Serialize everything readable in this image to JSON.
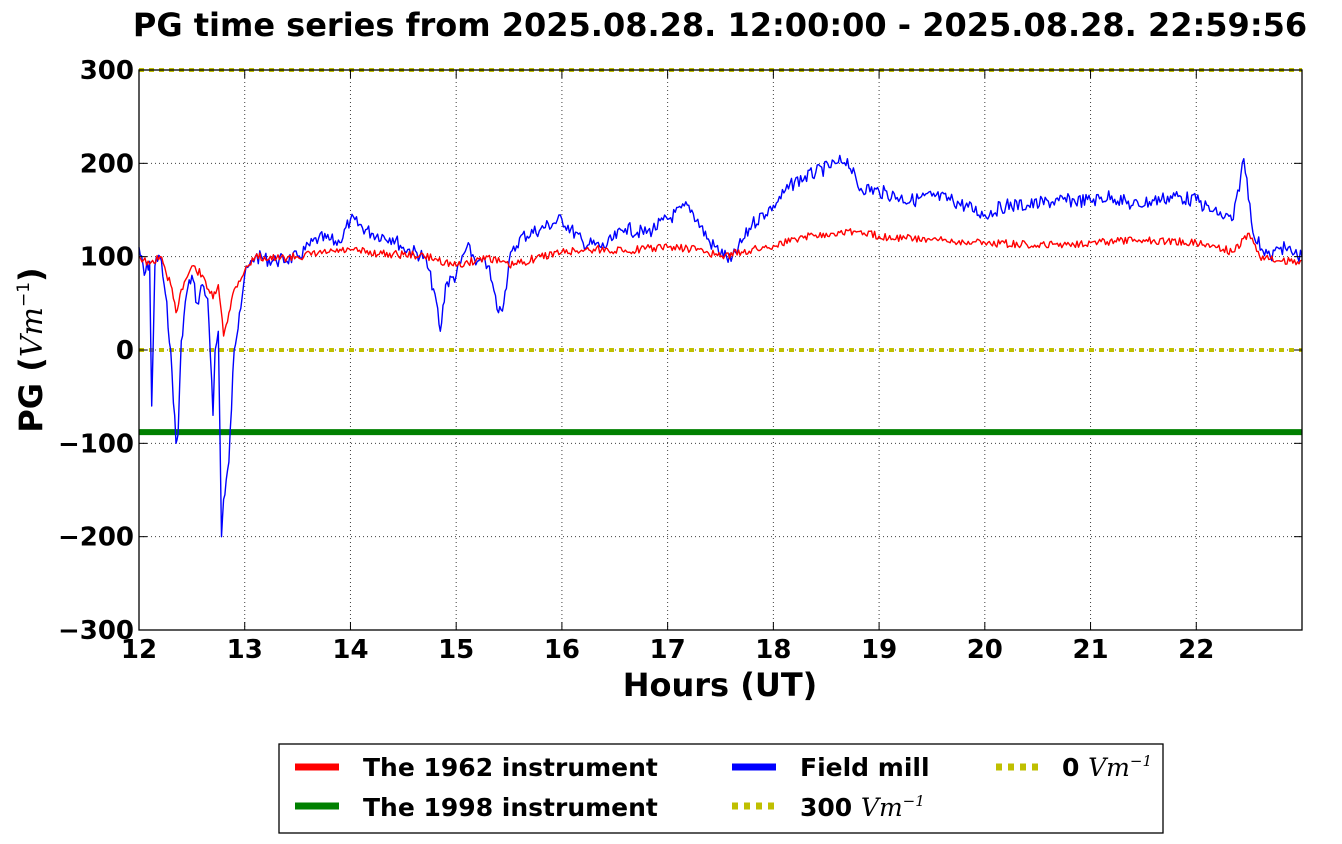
{
  "chart_data": {
    "type": "line",
    "title": "PG time series from 2025.08.28. 12:00:00 - 2025.08.28. 22:59:56",
    "xlabel": "Hours (UT)",
    "ylabel": "PG",
    "ylabel_unit": "Vm",
    "ylabel_unit_exp": "−1",
    "xlim": [
      12,
      23
    ],
    "ylim": [
      -300,
      300
    ],
    "xticks": [
      12,
      13,
      14,
      15,
      16,
      17,
      18,
      19,
      20,
      21,
      22
    ],
    "yticks": [
      -300,
      -200,
      -100,
      0,
      100,
      200,
      300
    ],
    "ytick_labels": [
      "−300",
      "−200",
      "−100",
      "0",
      "100",
      "200",
      "300"
    ],
    "grid": true,
    "legend_position": "below-center",
    "series": [
      {
        "name": "The 1962 instrument",
        "color": "#ff0000",
        "style": "solid",
        "x": [
          12.0,
          12.1,
          12.2,
          12.3,
          12.35,
          12.4,
          12.5,
          12.6,
          12.7,
          12.75,
          12.8,
          12.85,
          12.9,
          13.0,
          13.1,
          13.3,
          13.5,
          13.8,
          14.0,
          14.3,
          14.6,
          14.8,
          15.0,
          15.3,
          15.5,
          15.8,
          16.0,
          16.3,
          16.6,
          17.0,
          17.3,
          17.5,
          17.7,
          18.0,
          18.3,
          18.5,
          18.7,
          19.0,
          19.5,
          20.0,
          20.5,
          21.0,
          21.5,
          22.0,
          22.2,
          22.35,
          22.5,
          22.6,
          22.8,
          23.0
        ],
        "values": [
          100,
          92,
          100,
          70,
          40,
          65,
          90,
          80,
          55,
          70,
          15,
          40,
          65,
          85,
          100,
          98,
          100,
          105,
          107,
          103,
          102,
          98,
          90,
          100,
          90,
          100,
          105,
          108,
          107,
          110,
          108,
          100,
          105,
          112,
          122,
          125,
          128,
          122,
          118,
          115,
          112,
          115,
          118,
          115,
          110,
          105,
          125,
          100,
          95,
          96
        ]
      },
      {
        "name": "The 1998 instrument",
        "color": "#008000",
        "style": "solid",
        "x": [
          12,
          23
        ],
        "values": [
          -88,
          -88
        ]
      },
      {
        "name": "Field mill",
        "color": "#0000ff",
        "style": "solid",
        "x": [
          12.0,
          12.05,
          12.1,
          12.12,
          12.15,
          12.2,
          12.25,
          12.3,
          12.35,
          12.37,
          12.4,
          12.45,
          12.5,
          12.55,
          12.6,
          12.65,
          12.7,
          12.72,
          12.75,
          12.78,
          12.8,
          12.85,
          12.9,
          12.95,
          13.0,
          13.1,
          13.3,
          13.5,
          13.7,
          13.9,
          14.0,
          14.2,
          14.4,
          14.5,
          14.7,
          14.8,
          14.85,
          14.9,
          15.0,
          15.1,
          15.2,
          15.3,
          15.4,
          15.45,
          15.5,
          15.6,
          15.8,
          16.0,
          16.2,
          16.4,
          16.6,
          16.8,
          17.0,
          17.2,
          17.4,
          17.6,
          17.8,
          18.0,
          18.2,
          18.4,
          18.6,
          18.7,
          18.8,
          19.0,
          19.3,
          19.5,
          19.7,
          20.0,
          20.2,
          20.4,
          20.7,
          21.0,
          21.2,
          21.4,
          21.6,
          21.8,
          22.0,
          22.2,
          22.35,
          22.45,
          22.55,
          22.7,
          22.8,
          23.0
        ],
        "values": [
          110,
          80,
          95,
          -60,
          90,
          100,
          60,
          0,
          -100,
          -90,
          10,
          60,
          80,
          50,
          70,
          55,
          -70,
          0,
          20,
          -200,
          -160,
          -120,
          0,
          40,
          80,
          100,
          95,
          100,
          120,
          115,
          140,
          125,
          120,
          110,
          100,
          60,
          20,
          70,
          80,
          110,
          95,
          90,
          40,
          50,
          95,
          120,
          130,
          140,
          115,
          110,
          130,
          125,
          140,
          155,
          115,
          95,
          135,
          155,
          180,
          190,
          200,
          205,
          175,
          170,
          160,
          165,
          160,
          145,
          155,
          155,
          160,
          160,
          165,
          155,
          160,
          165,
          160,
          145,
          140,
          205,
          120,
          100,
          110,
          100
        ]
      },
      {
        "name": "300 Vm⁻¹",
        "label_main": "300",
        "label_unit": "Vm",
        "label_exp": "−1",
        "color": "#bfbf00",
        "style": "dotted",
        "x": [
          12,
          23
        ],
        "values": [
          300,
          300
        ]
      },
      {
        "name": "0 Vm⁻¹",
        "label_main": "0",
        "label_unit": "Vm",
        "label_exp": "−1",
        "color": "#bfbf00",
        "style": "dotted",
        "x": [
          12,
          23
        ],
        "values": [
          0,
          0
        ]
      }
    ]
  }
}
